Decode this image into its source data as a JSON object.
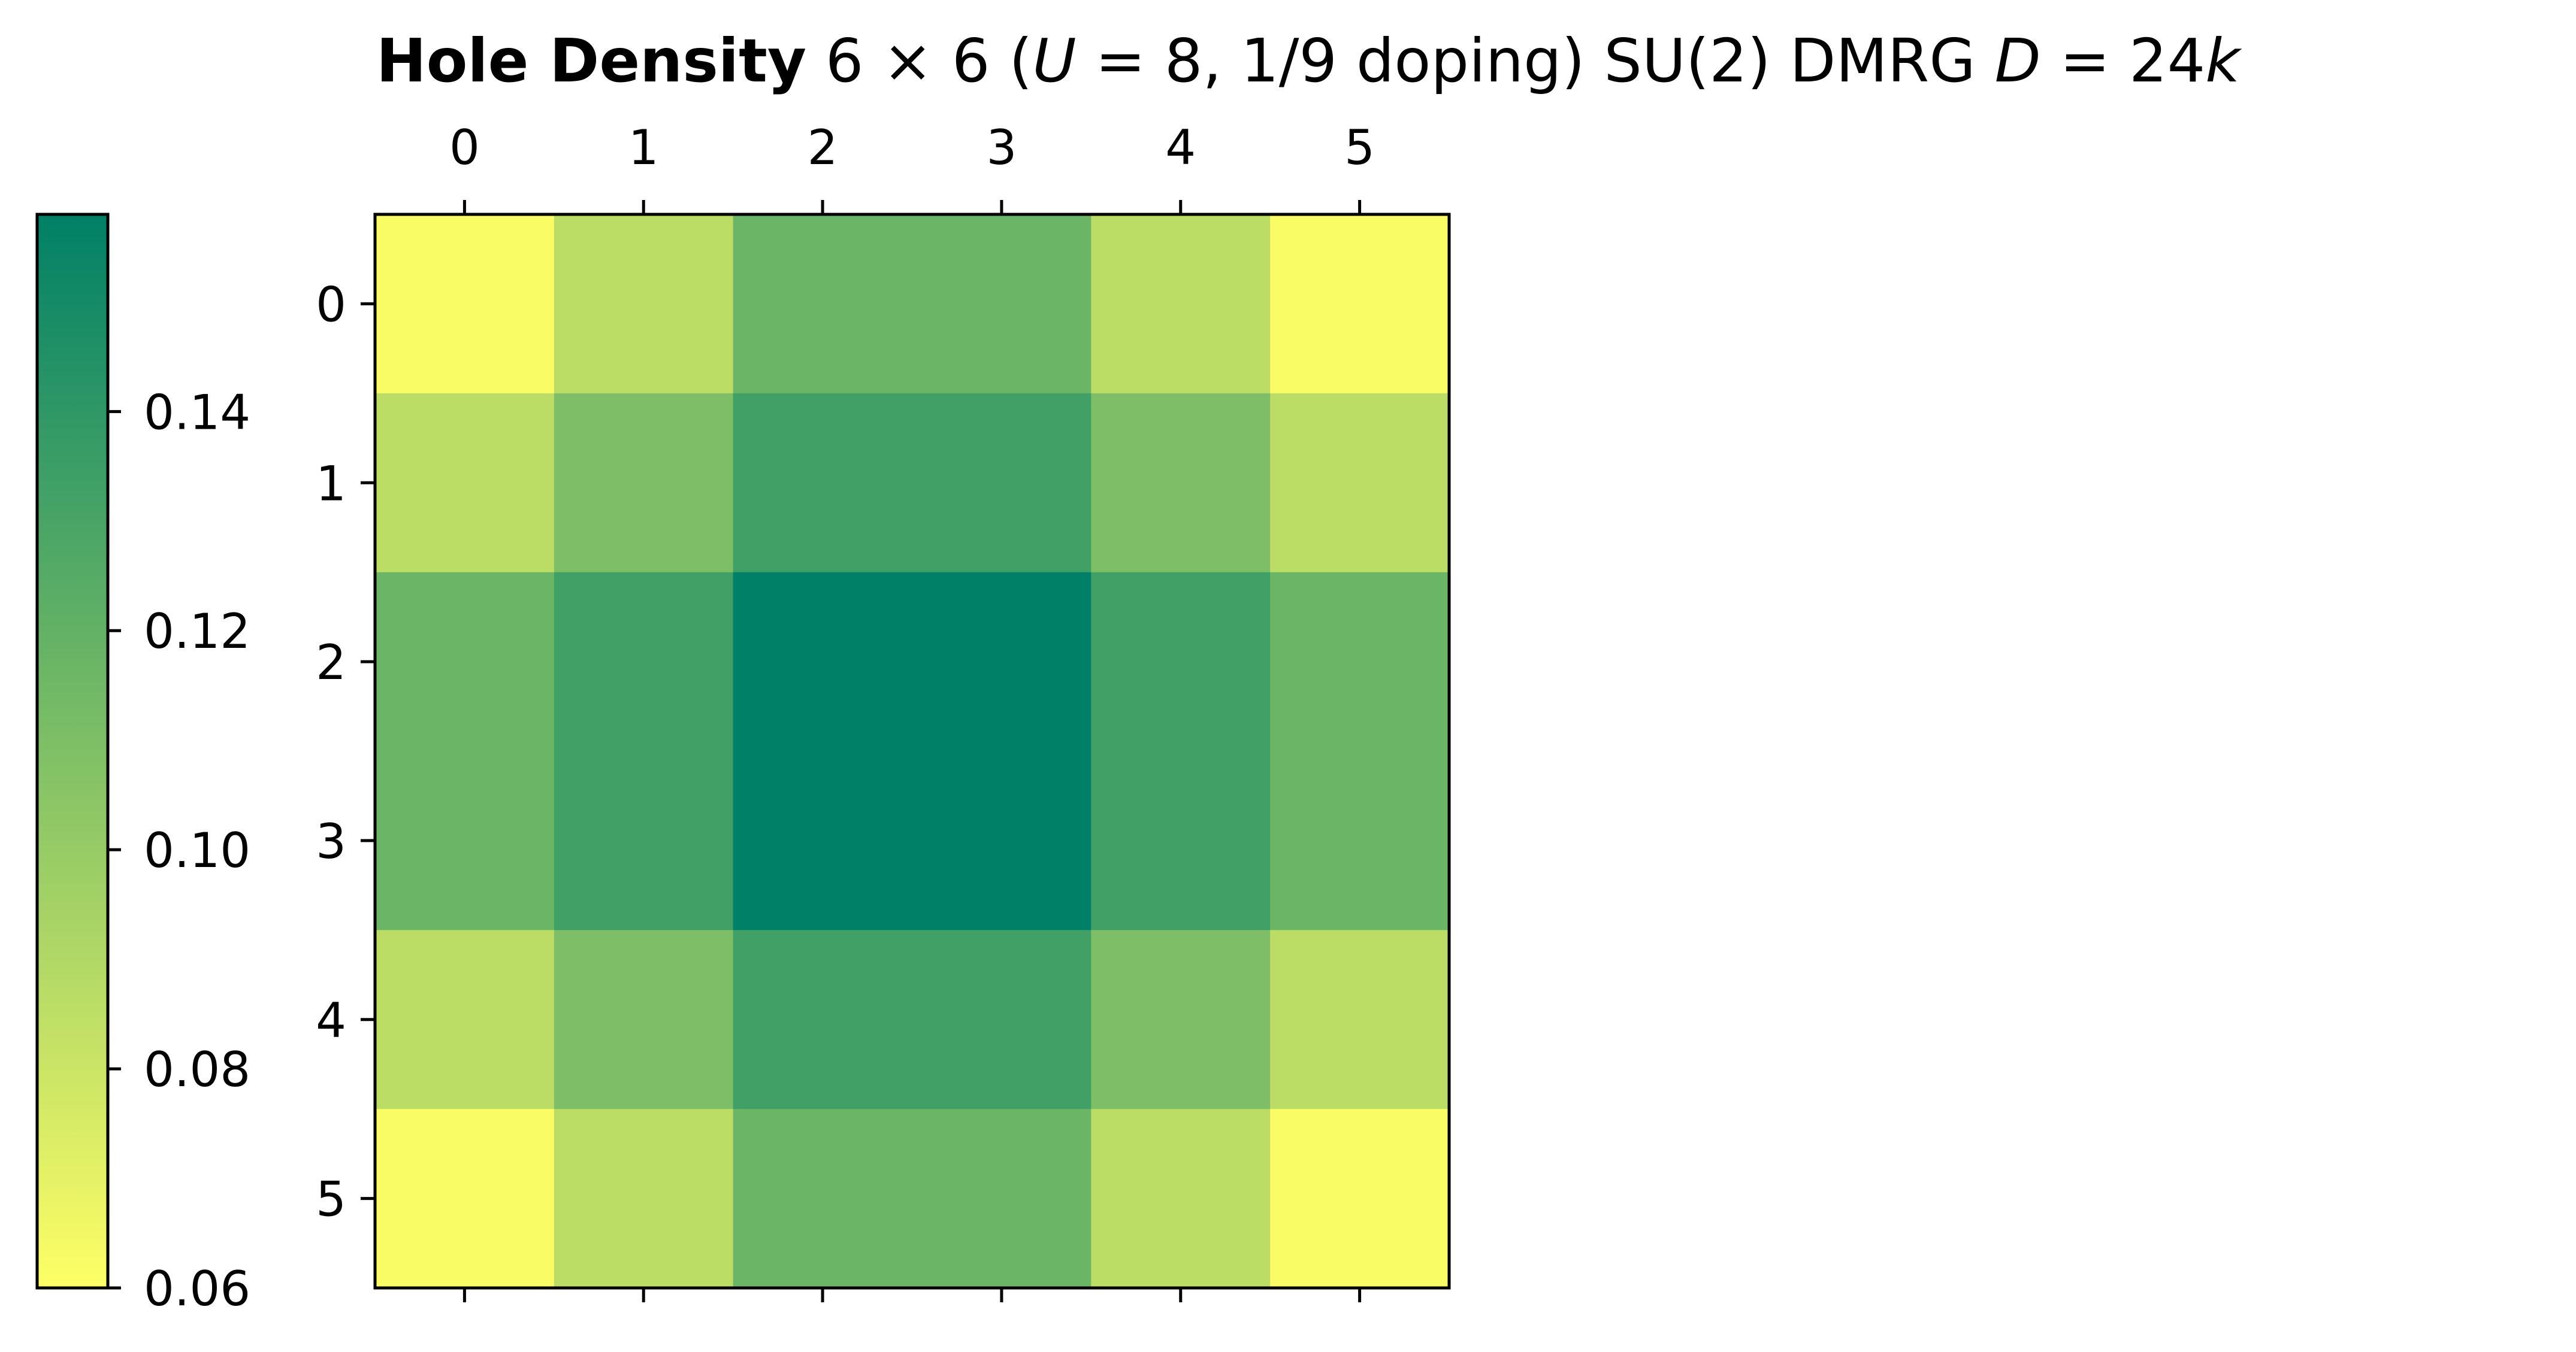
{
  "chart_data": {
    "type": "heatmap",
    "title": {
      "bold": "Hole Density",
      "size": "6 × 6",
      "params_open": "(",
      "U": "U",
      "params_mid": " = 8, 1/9 doping)",
      "method": "SU(2) DMRG",
      "D": "D",
      "bond_dim": " = 24",
      "k": "k"
    },
    "x_ticks": [
      "0",
      "1",
      "2",
      "3",
      "4",
      "5"
    ],
    "y_ticks": [
      "0",
      "1",
      "2",
      "3",
      "4",
      "5"
    ],
    "values": [
      [
        0.062,
        0.086,
        0.117,
        0.117,
        0.086,
        0.062
      ],
      [
        0.086,
        0.11,
        0.133,
        0.133,
        0.11,
        0.086
      ],
      [
        0.117,
        0.133,
        0.158,
        0.158,
        0.133,
        0.117
      ],
      [
        0.117,
        0.133,
        0.158,
        0.158,
        0.133,
        0.117
      ],
      [
        0.086,
        0.11,
        0.133,
        0.133,
        0.11,
        0.086
      ],
      [
        0.062,
        0.086,
        0.117,
        0.117,
        0.086,
        0.062
      ]
    ],
    "colorbar": {
      "min": 0.06,
      "max": 0.158,
      "ticks": [
        0.06,
        0.08,
        0.1,
        0.12,
        0.14
      ],
      "tick_labels": [
        "0.06",
        "0.08",
        "0.10",
        "0.12",
        "0.14"
      ],
      "placement": "left"
    },
    "colormap": "summer_r",
    "colormap_stops": [
      "#ffff66",
      "#008066"
    ]
  }
}
